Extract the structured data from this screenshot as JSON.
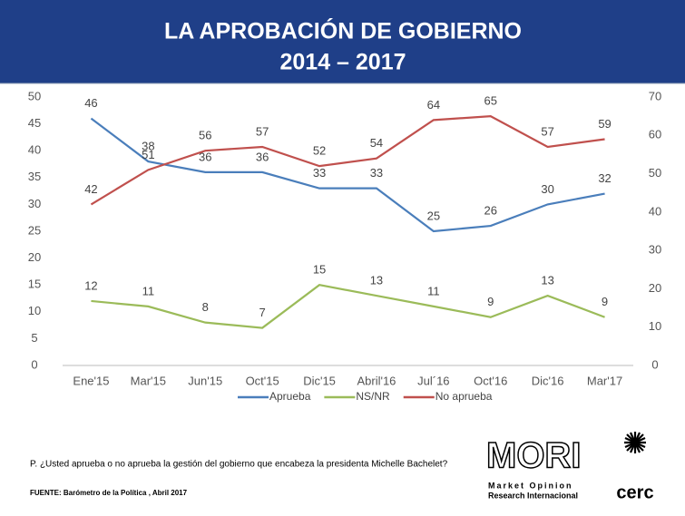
{
  "chart_data": {
    "type": "line",
    "title": [
      "LA APROBACIÓN DE GOBIERNO",
      "2014 – 2017"
    ],
    "categories": [
      "Ene'15",
      "Mar'15",
      "Jun'15",
      "Oct'15",
      "Dic'15",
      "Abril'16",
      "Jul´16",
      "Oct'16",
      "Dic'16",
      "Mar'17"
    ],
    "series": [
      {
        "name": "Aprueba",
        "color": "#4a7ebb",
        "values": [
          46,
          38,
          36,
          36,
          33,
          33,
          25,
          26,
          30,
          32
        ]
      },
      {
        "name": "NS/NR",
        "color": "#9bbb59",
        "values": [
          12,
          11,
          8,
          7,
          15,
          13,
          11,
          9,
          13,
          9
        ]
      },
      {
        "name": "No aprueba",
        "color": "#c0504d",
        "axis": "y2",
        "values": [
          42,
          51,
          56,
          57,
          52,
          54,
          64,
          65,
          57,
          59
        ]
      }
    ],
    "ylim": [
      0,
      50
    ],
    "yticks": [
      0,
      5,
      10,
      15,
      20,
      25,
      30,
      35,
      40,
      45,
      50
    ],
    "y2lim": [
      0,
      70
    ],
    "y2ticks": [
      0,
      10,
      20,
      30,
      40,
      50,
      60,
      70
    ],
    "legend": "bottom",
    "question": "P. ¿Usted aprueba o no aprueba la gestión del gobierno que encabeza la presidenta Michelle Bachelet?",
    "source": "FUENTE: Barómetro de la Política , Abril 2017",
    "logo_mori": {
      "name": "MORI",
      "line1": "Market Opinion",
      "line2": "Research Internacional"
    },
    "logo_cerc": "cerc"
  }
}
